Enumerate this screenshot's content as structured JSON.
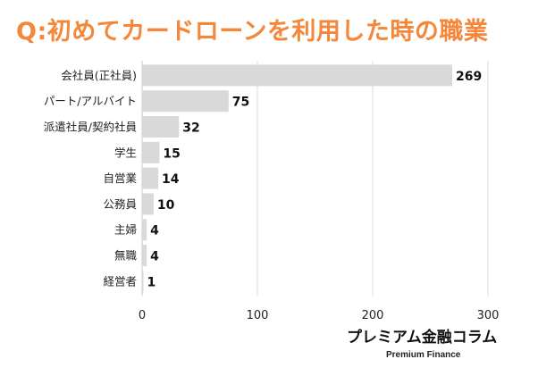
{
  "title": "Q:初めてカードローンを利用した時の職業",
  "brand": {
    "name": "プレミアム金融コラム",
    "tagline": "Premium Finance"
  },
  "colors": {
    "title": "#f4873a",
    "bar": "#d9d9d9",
    "grid": "#dcdcdc",
    "text": "#111111"
  },
  "chart_data": {
    "type": "bar",
    "orientation": "horizontal",
    "categories": [
      "会社員(正社員)",
      "パート/アルバイト",
      "派遣社員/契約社員",
      "学生",
      "自営業",
      "公務員",
      "主婦",
      "無職",
      "経営者"
    ],
    "values": [
      269,
      75,
      32,
      15,
      14,
      10,
      4,
      4,
      1
    ],
    "x_ticks": [
      0,
      100,
      200,
      300
    ],
    "xlim": [
      0,
      300
    ],
    "grid": true,
    "legend": false
  }
}
